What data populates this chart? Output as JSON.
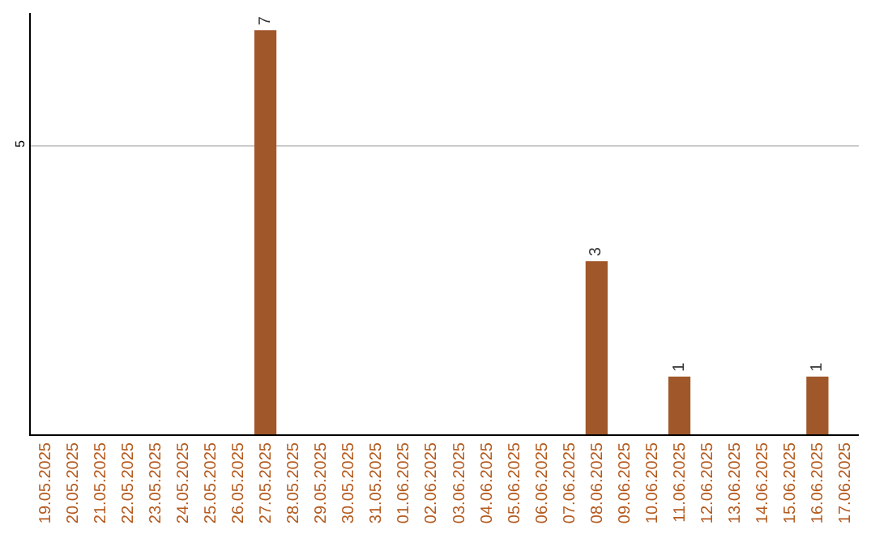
{
  "chart_data": {
    "type": "bar",
    "categories": [
      "19.05.2025",
      "20.05.2025",
      "21.05.2025",
      "22.05.2025",
      "23.05.2025",
      "24.05.2025",
      "25.05.2025",
      "26.05.2025",
      "27.05.2025",
      "28.05.2025",
      "29.05.2025",
      "30.05.2025",
      "31.05.2025",
      "01.06.2025",
      "02.06.2025",
      "03.06.2025",
      "04.06.2025",
      "05.06.2025",
      "06.06.2025",
      "07.06.2025",
      "08.06.2025",
      "09.06.2025",
      "10.06.2025",
      "11.06.2025",
      "12.06.2025",
      "13.06.2025",
      "14.06.2025",
      "15.06.2025",
      "16.06.2025",
      "17.06.2025"
    ],
    "values": [
      0,
      0,
      0,
      0,
      0,
      0,
      0,
      0,
      7,
      0,
      0,
      0,
      0,
      0,
      0,
      0,
      0,
      0,
      0,
      0,
      3,
      0,
      0,
      1,
      0,
      0,
      0,
      0,
      1,
      0
    ],
    "value_labels": [
      null,
      null,
      null,
      null,
      null,
      null,
      null,
      null,
      "7",
      null,
      null,
      null,
      null,
      null,
      null,
      null,
      null,
      null,
      null,
      null,
      "3",
      null,
      null,
      "1",
      null,
      null,
      null,
      null,
      "1",
      null
    ],
    "color": "#a0572a",
    "ylim": [
      0,
      7.3
    ],
    "yticks": [
      5
    ],
    "grid": "y"
  }
}
